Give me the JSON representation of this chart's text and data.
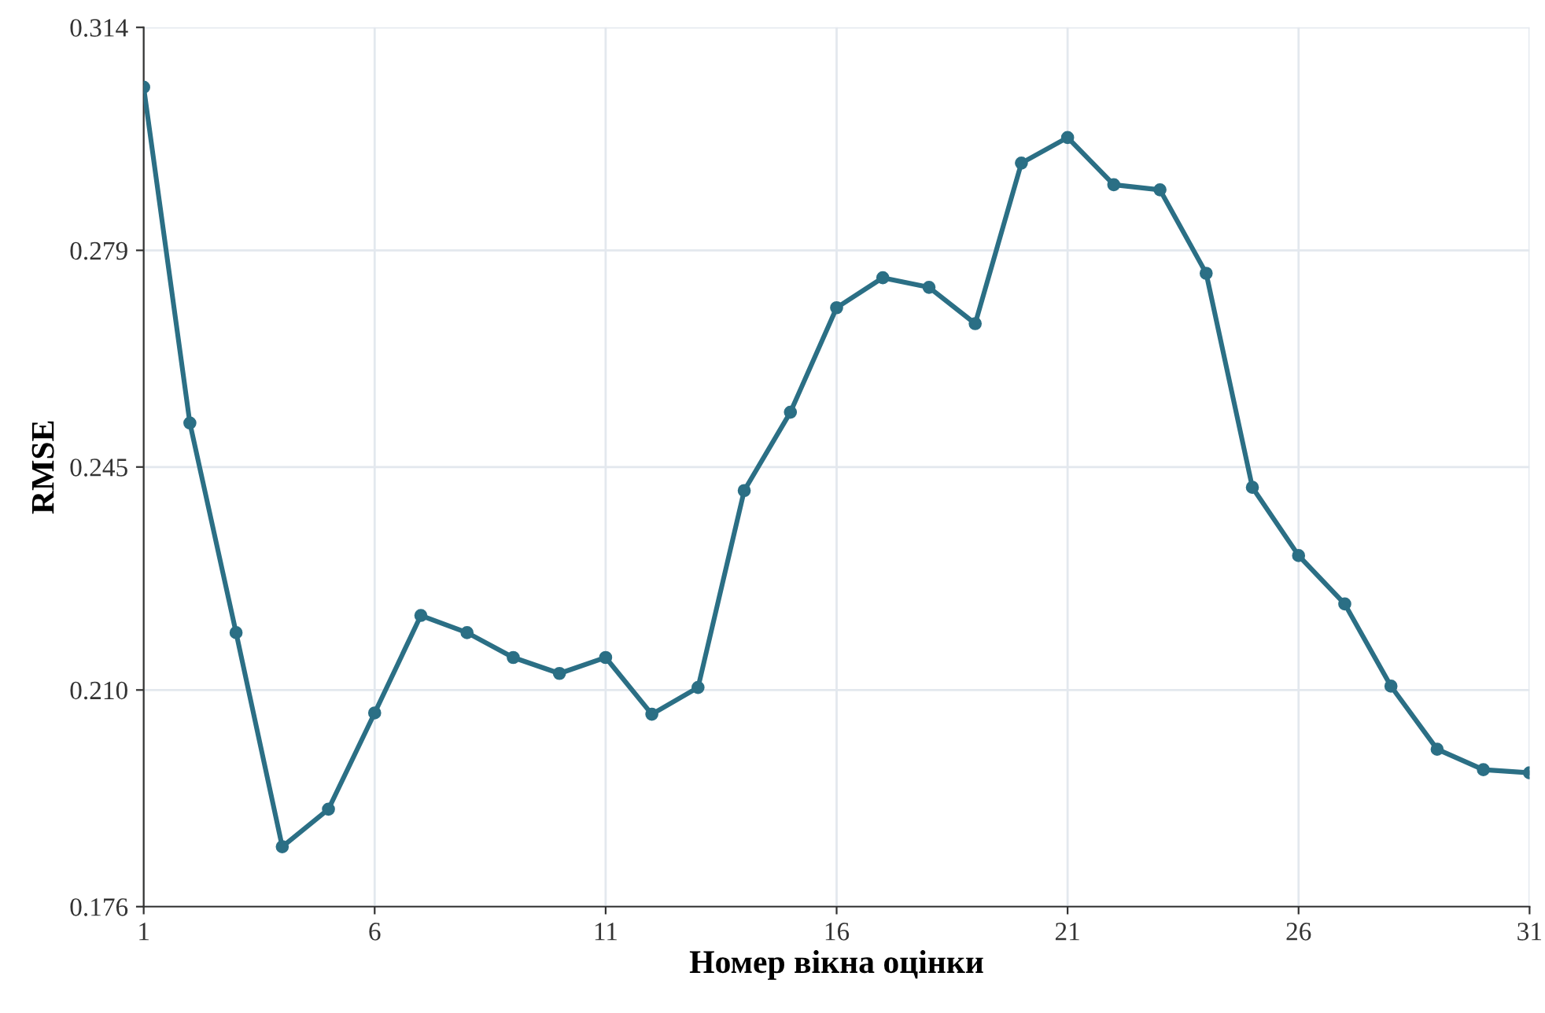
{
  "chart_data": {
    "type": "line",
    "xlabel": "Номер вікна оцінки",
    "ylabel": "RMSE",
    "x": [
      1,
      2,
      3,
      4,
      5,
      6,
      7,
      8,
      9,
      10,
      11,
      12,
      13,
      14,
      15,
      16,
      17,
      18,
      19,
      20,
      21,
      22,
      23,
      24,
      25,
      26,
      27,
      28,
      29,
      30,
      31
    ],
    "series": [
      {
        "color": "#2b6f85",
        "values": [
          0.3046,
          0.2519,
          0.219,
          0.1854,
          0.1913,
          0.2064,
          0.2217,
          0.219,
          0.2151,
          0.2126,
          0.2151,
          0.2062,
          0.2104,
          0.2413,
          0.2536,
          0.27,
          0.2747,
          0.2732,
          0.2675,
          0.2927,
          0.2967,
          0.2893,
          0.2885,
          0.2754,
          0.2418,
          0.2311,
          0.2235,
          0.2106,
          0.2007,
          0.1975,
          0.197
        ]
      }
    ],
    "xlim": [
      1,
      31
    ],
    "xticks": [
      1,
      6,
      11,
      16,
      21,
      26,
      31
    ],
    "ylim": [
      0.176,
      0.314
    ],
    "yticks": [
      0.176,
      {
        "value": 0.21,
        "label": "0.210"
      },
      0.245,
      0.279,
      0.314
    ],
    "grid": true,
    "marker": "circle",
    "line_style": "solid"
  }
}
